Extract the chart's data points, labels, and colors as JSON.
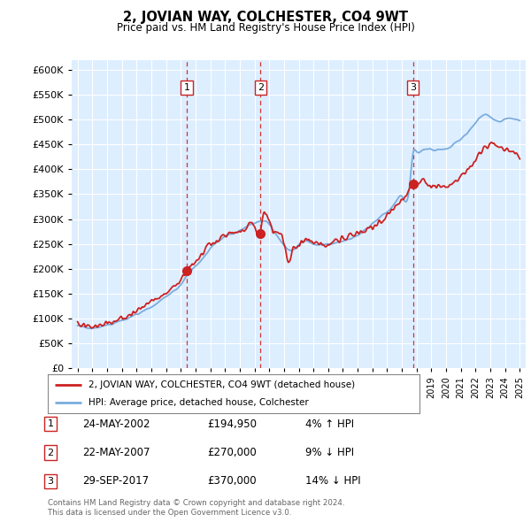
{
  "title": "2, JOVIAN WAY, COLCHESTER, CO4 9WT",
  "subtitle": "Price paid vs. HM Land Registry's House Price Index (HPI)",
  "legend_line1": "2, JOVIAN WAY, COLCHESTER, CO4 9WT (detached house)",
  "legend_line2": "HPI: Average price, detached house, Colchester",
  "hpi_color": "#7aacde",
  "price_color": "#cc2222",
  "bg_color": "#ddeeff",
  "grid_color": "#ffffff",
  "ymin": 0,
  "ymax": 620000,
  "yticks": [
    0,
    50000,
    100000,
    150000,
    200000,
    250000,
    300000,
    350000,
    400000,
    450000,
    500000,
    550000,
    600000
  ],
  "transactions": [
    {
      "label": "1",
      "date": "24-MAY-2002",
      "price": 194950,
      "pct": "4%",
      "dir": "↑",
      "x": 2002.4
    },
    {
      "label": "2",
      "date": "22-MAY-2007",
      "price": 270000,
      "pct": "9%",
      "dir": "↓",
      "x": 2007.4
    },
    {
      "label": "3",
      "date": "29-SEP-2017",
      "price": 370000,
      "pct": "14%",
      "dir": "↓",
      "x": 2017.75
    }
  ],
  "footnote1": "Contains HM Land Registry data © Crown copyright and database right 2024.",
  "footnote2": "This data is licensed under the Open Government Licence v3.0.",
  "xmin": 1994.6,
  "xmax": 2025.4
}
